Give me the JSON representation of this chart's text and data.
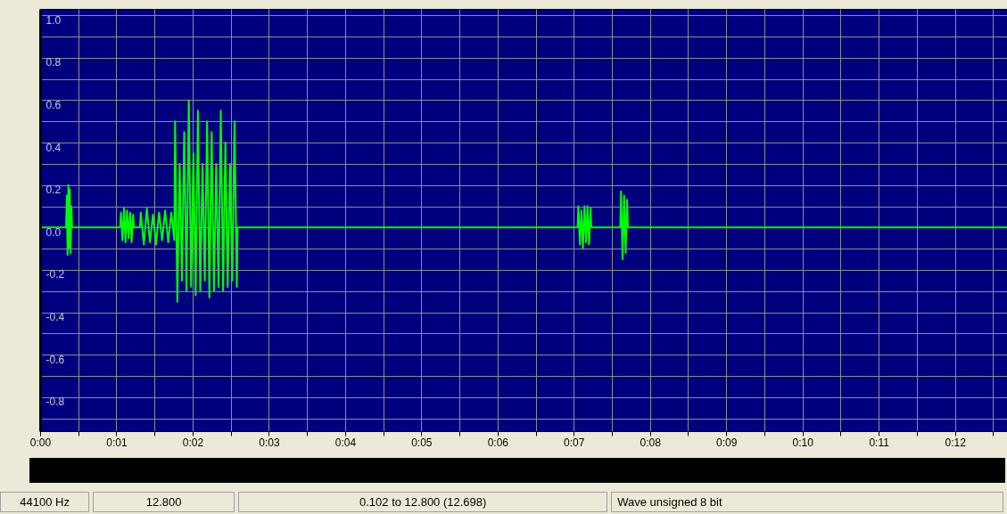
{
  "chart_data": {
    "type": "line",
    "x": [
      0,
      0.34,
      0.35,
      0.36,
      0.37,
      0.38,
      0.39,
      0.4,
      0.41,
      0.42,
      1.05,
      1.06,
      1.08,
      1.1,
      1.12,
      1.14,
      1.16,
      1.18,
      1.2,
      1.22,
      1.23,
      1.31,
      1.32,
      1.36,
      1.4,
      1.44,
      1.48,
      1.52,
      1.56,
      1.6,
      1.64,
      1.68,
      1.72,
      1.76,
      1.77,
      1.8,
      1.83,
      1.86,
      1.89,
      1.92,
      1.95,
      1.98,
      2.01,
      2.04,
      2.07,
      2.1,
      2.13,
      2.16,
      2.19,
      2.22,
      2.25,
      2.28,
      2.31,
      2.34,
      2.37,
      2.4,
      2.43,
      2.46,
      2.49,
      2.52,
      2.55,
      2.58,
      2.59,
      7.05,
      7.06,
      7.08,
      7.1,
      7.12,
      7.14,
      7.16,
      7.18,
      7.2,
      7.22,
      7.23,
      7.61,
      7.62,
      7.64,
      7.66,
      7.68,
      7.7,
      7.71,
      12.8
    ],
    "series": [
      {
        "color": "#00ff00",
        "values": [
          0,
          0,
          0.15,
          -0.13,
          0.2,
          -0.1,
          0.18,
          -0.12,
          0.1,
          0,
          0,
          0.07,
          -0.06,
          0.09,
          -0.07,
          0.08,
          -0.05,
          0.07,
          -0.07,
          0.06,
          0,
          0,
          0.07,
          -0.08,
          0.09,
          -0.07,
          0.06,
          -0.08,
          0.07,
          -0.06,
          0.08,
          -0.07,
          0.07,
          -0.06,
          0.5,
          -0.35,
          0.3,
          -0.25,
          0.45,
          -0.3,
          0.6,
          -0.28,
          0.35,
          -0.32,
          0.55,
          -0.3,
          0.3,
          -0.25,
          0.5,
          -0.33,
          0.45,
          -0.3,
          0.3,
          -0.28,
          0.55,
          -0.3,
          0.4,
          -0.28,
          0.3,
          -0.25,
          0.5,
          -0.28,
          0,
          0,
          0.1,
          -0.08,
          0.08,
          -0.1,
          0.1,
          -0.07,
          0.1,
          -0.08,
          0.09,
          0,
          0,
          0.17,
          -0.15,
          0.15,
          -0.12,
          0.13,
          0,
          0
        ]
      }
    ],
    "xlim": [
      0,
      12.8
    ],
    "ylim": [
      -0.96,
      1.03
    ],
    "xticks": [
      {
        "value": 0,
        "label": "0:00"
      },
      {
        "value": 0.5,
        "label": null
      },
      {
        "value": 1,
        "label": "0:01"
      },
      {
        "value": 1.5,
        "label": null
      },
      {
        "value": 2,
        "label": "0:02"
      },
      {
        "value": 2.5,
        "label": null
      },
      {
        "value": 3,
        "label": "0:03"
      },
      {
        "value": 3.5,
        "label": null
      },
      {
        "value": 4,
        "label": "0:04"
      },
      {
        "value": 4.5,
        "label": null
      },
      {
        "value": 5,
        "label": "0:05"
      },
      {
        "value": 5.5,
        "label": null
      },
      {
        "value": 6,
        "label": "0:06"
      },
      {
        "value": 6.5,
        "label": null
      },
      {
        "value": 7,
        "label": "0:07"
      },
      {
        "value": 7.5,
        "label": null
      },
      {
        "value": 8,
        "label": "0:08"
      },
      {
        "value": 8.5,
        "label": null
      },
      {
        "value": 9,
        "label": "0:09"
      },
      {
        "value": 9.5,
        "label": null
      },
      {
        "value": 10,
        "label": "0:10"
      },
      {
        "value": 10.5,
        "label": null
      },
      {
        "value": 11,
        "label": "0:11"
      },
      {
        "value": 11.5,
        "label": null
      },
      {
        "value": 12,
        "label": "0:12"
      },
      {
        "value": 12.5,
        "label": null
      }
    ],
    "yticks": [
      {
        "value": 1,
        "label": "1.0"
      },
      {
        "value": 0.9,
        "label": null
      },
      {
        "value": 0.8,
        "label": "0.8"
      },
      {
        "value": 0.7,
        "label": null
      },
      {
        "value": 0.6,
        "label": "0.6"
      },
      {
        "value": 0.5,
        "label": null
      },
      {
        "value": 0.4,
        "label": "0.4"
      },
      {
        "value": 0.3,
        "label": null
      },
      {
        "value": 0.2,
        "label": "0.2"
      },
      {
        "value": 0.1,
        "label": null
      },
      {
        "value": 0,
        "label": "0.0"
      },
      {
        "value": -0.1,
        "label": null
      },
      {
        "value": -0.2,
        "label": "-0.2"
      },
      {
        "value": -0.3,
        "label": null
      },
      {
        "value": -0.4,
        "label": "-0.4"
      },
      {
        "value": -0.5,
        "label": null
      },
      {
        "value": -0.6,
        "label": "-0.6"
      },
      {
        "value": -0.7,
        "label": null
      },
      {
        "value": -0.8,
        "label": "-0.8"
      },
      {
        "value": -0.9,
        "label": null
      }
    ],
    "grid": true,
    "line_style": "solid",
    "annotations": [
      "44100 Hz",
      "12.800",
      "0.102 to 12.800  (12.698)",
      "Wave unsigned 8 bit"
    ]
  }
}
